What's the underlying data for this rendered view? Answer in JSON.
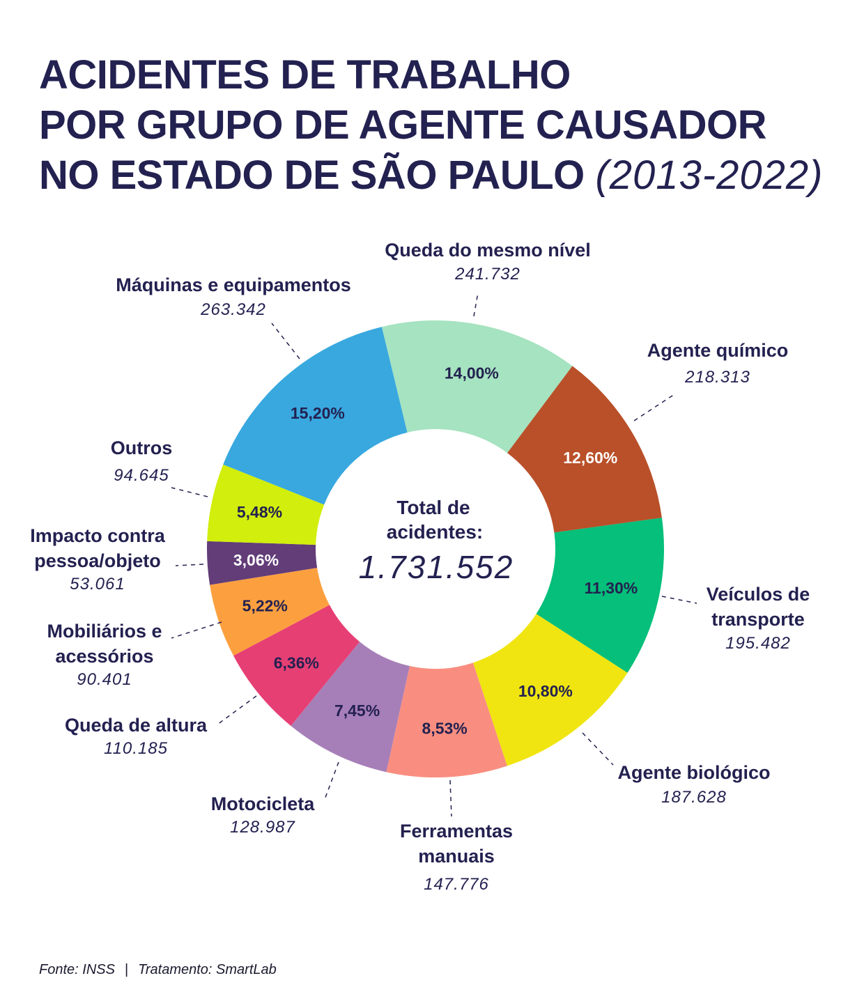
{
  "title": {
    "line1": "ACIDENTES DE TRABALHO",
    "line2": "POR GRUPO DE AGENTE CAUSADOR",
    "line3": "NO ESTADO DE SÃO PAULO",
    "years": "(2013-2022)"
  },
  "footer": {
    "source": "Fonte: INSS",
    "separator": "|",
    "treatment": "Tratamento: SmartLab"
  },
  "chart_data": {
    "type": "pie",
    "variant": "donut",
    "title": "Acidentes de trabalho por grupo de agente causador no Estado de São Paulo (2013-2022)",
    "center": {
      "label_line1": "Total de",
      "label_line2": "acidentes:",
      "value": "1.731.552",
      "total": 1731552
    },
    "start_angle_deg": -13.6,
    "direction": "clockwise",
    "slices": [
      {
        "name_lines": [
          "Queda do mesmo nível"
        ],
        "value": 241732,
        "value_label": "241.732",
        "percent": 14.0,
        "percent_label": "14,00%",
        "color": "#a6e3c0",
        "pct_color": "#232150"
      },
      {
        "name_lines": [
          "Agente químico"
        ],
        "value": 218313,
        "value_label": "218.313",
        "percent": 12.6,
        "percent_label": "12,60%",
        "color": "#b95029",
        "pct_color": "#ffffff"
      },
      {
        "name_lines": [
          "Veículos de",
          "transporte"
        ],
        "value": 195482,
        "value_label": "195.482",
        "percent": 11.3,
        "percent_label": "11,30%",
        "color": "#05bf7a",
        "pct_color": "#232150"
      },
      {
        "name_lines": [
          "Agente biológico"
        ],
        "value": 187628,
        "value_label": "187.628",
        "percent": 10.8,
        "percent_label": "10,80%",
        "color": "#f0e511",
        "pct_color": "#232150"
      },
      {
        "name_lines": [
          "Ferramentas",
          "manuais"
        ],
        "value": 147776,
        "value_label": "147.776",
        "percent": 8.53,
        "percent_label": "8,53%",
        "color": "#f98e80",
        "pct_color": "#232150"
      },
      {
        "name_lines": [
          "Motocicleta"
        ],
        "value": 128987,
        "value_label": "128.987",
        "percent": 7.45,
        "percent_label": "7,45%",
        "color": "#a77fb8",
        "pct_color": "#232150"
      },
      {
        "name_lines": [
          "Queda de altura"
        ],
        "value": 110185,
        "value_label": "110.185",
        "percent": 6.36,
        "percent_label": "6,36%",
        "color": "#e63f74",
        "pct_color": "#232150"
      },
      {
        "name_lines": [
          "Mobiliários e",
          "acessórios"
        ],
        "value": 90401,
        "value_label": "90.401",
        "percent": 5.22,
        "percent_label": "5,22%",
        "color": "#fca03f",
        "pct_color": "#232150"
      },
      {
        "name_lines": [
          "Impacto contra",
          "pessoa/objeto"
        ],
        "value": 53061,
        "value_label": "53.061",
        "percent": 3.06,
        "percent_label": "3,06%",
        "color": "#623d78",
        "pct_color": "#ffffff"
      },
      {
        "name_lines": [
          "Outros"
        ],
        "value": 94645,
        "value_label": "94.645",
        "percent": 5.48,
        "percent_label": "5,48%",
        "color": "#d1ee0c",
        "pct_color": "#232150"
      },
      {
        "name_lines": [
          "Máquinas e equipamentos"
        ],
        "value": 263342,
        "value_label": "263.342",
        "percent": 15.2,
        "percent_label": "15,20%",
        "color": "#38a8df",
        "pct_color": "#232150"
      }
    ]
  }
}
